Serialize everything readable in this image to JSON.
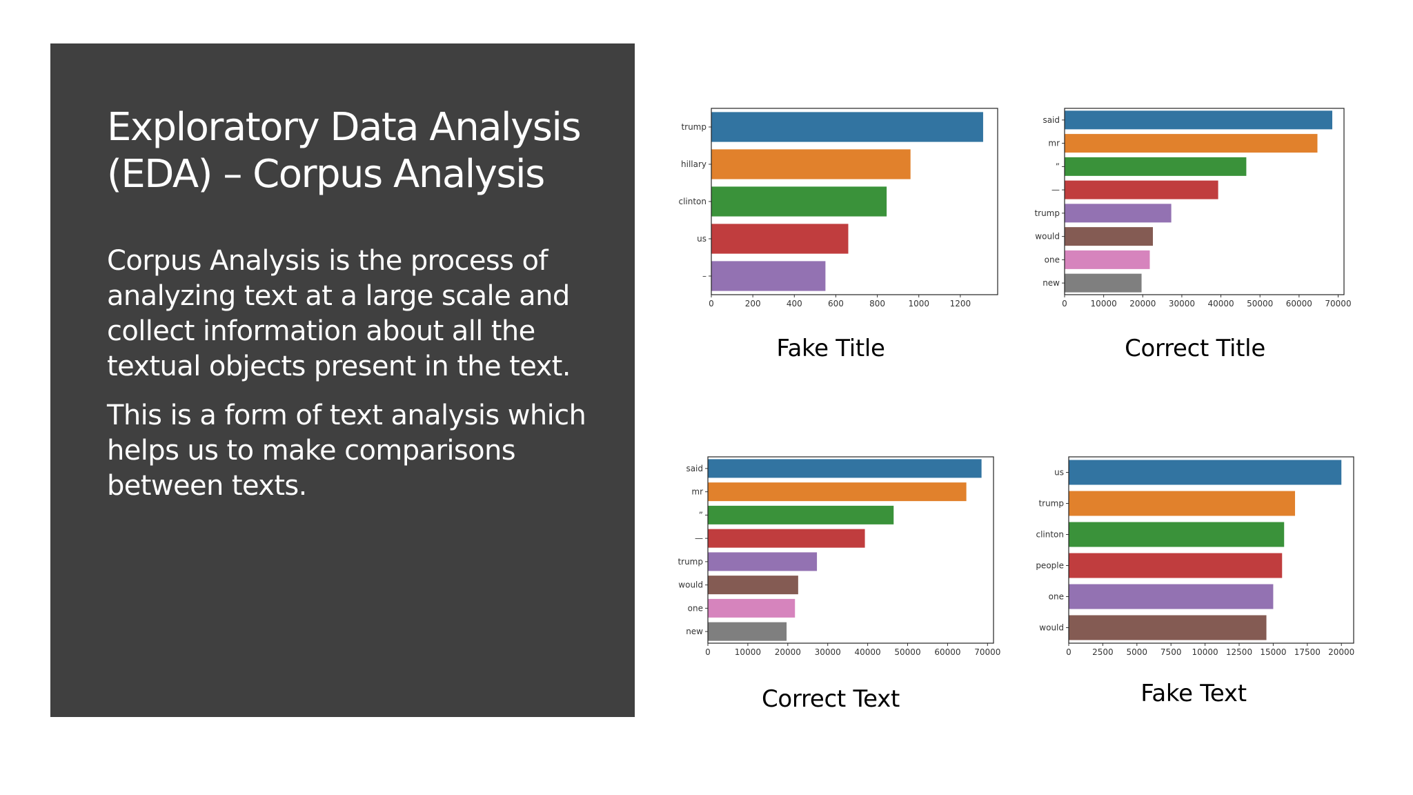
{
  "slide": {
    "title_line1": "Exploratory Data Analysis",
    "title_line2": "(EDA) – Corpus Analysis",
    "paragraph1": "Corpus Analysis is the process of analyzing text at a large scale and collect information about all the textual objects present in the text.",
    "paragraph2": "This is a form of text analysis which helps us to make comparisons between texts."
  },
  "palette": [
    "#3274a1",
    "#e1812c",
    "#3a923a",
    "#c03d3e",
    "#9372b2",
    "#845b53",
    "#d684bd",
    "#7f7f7f"
  ],
  "chart_data": [
    {
      "type": "bar",
      "orientation": "horizontal",
      "caption": "Fake Title",
      "categories": [
        "trump",
        "hillary",
        "clinton",
        "us",
        "–"
      ],
      "values": [
        1310,
        960,
        845,
        660,
        550
      ],
      "xlim": [
        0,
        1380
      ],
      "xticks": [
        0,
        200,
        400,
        600,
        800,
        1000,
        1200
      ]
    },
    {
      "type": "bar",
      "orientation": "horizontal",
      "caption": "Correct Title",
      "categories": [
        "said",
        "mr",
        "”",
        "—",
        "trump",
        "would",
        "one",
        "new"
      ],
      "values": [
        68500,
        64700,
        46500,
        39300,
        27300,
        22600,
        21800,
        19700
      ],
      "xlim": [
        0,
        71500
      ],
      "xticks": [
        0,
        10000,
        20000,
        30000,
        40000,
        50000,
        60000,
        70000
      ]
    },
    {
      "type": "bar",
      "orientation": "horizontal",
      "caption": "Correct Text",
      "categories": [
        "said",
        "mr",
        "”",
        "—",
        "trump",
        "would",
        "one",
        "new"
      ],
      "values": [
        68500,
        64700,
        46500,
        39300,
        27300,
        22600,
        21800,
        19700
      ],
      "xlim": [
        0,
        71500
      ],
      "xticks": [
        0,
        10000,
        20000,
        30000,
        40000,
        50000,
        60000,
        70000
      ]
    },
    {
      "type": "bar",
      "orientation": "horizontal",
      "caption": "Fake Text",
      "categories": [
        "us",
        "trump",
        "clinton",
        "people",
        "one",
        "would"
      ],
      "values": [
        20000,
        16600,
        15800,
        15650,
        15000,
        14500
      ],
      "xlim": [
        0,
        20900
      ],
      "xticks": [
        0,
        2500,
        5000,
        7500,
        10000,
        12500,
        15000,
        17500,
        20000
      ]
    }
  ]
}
